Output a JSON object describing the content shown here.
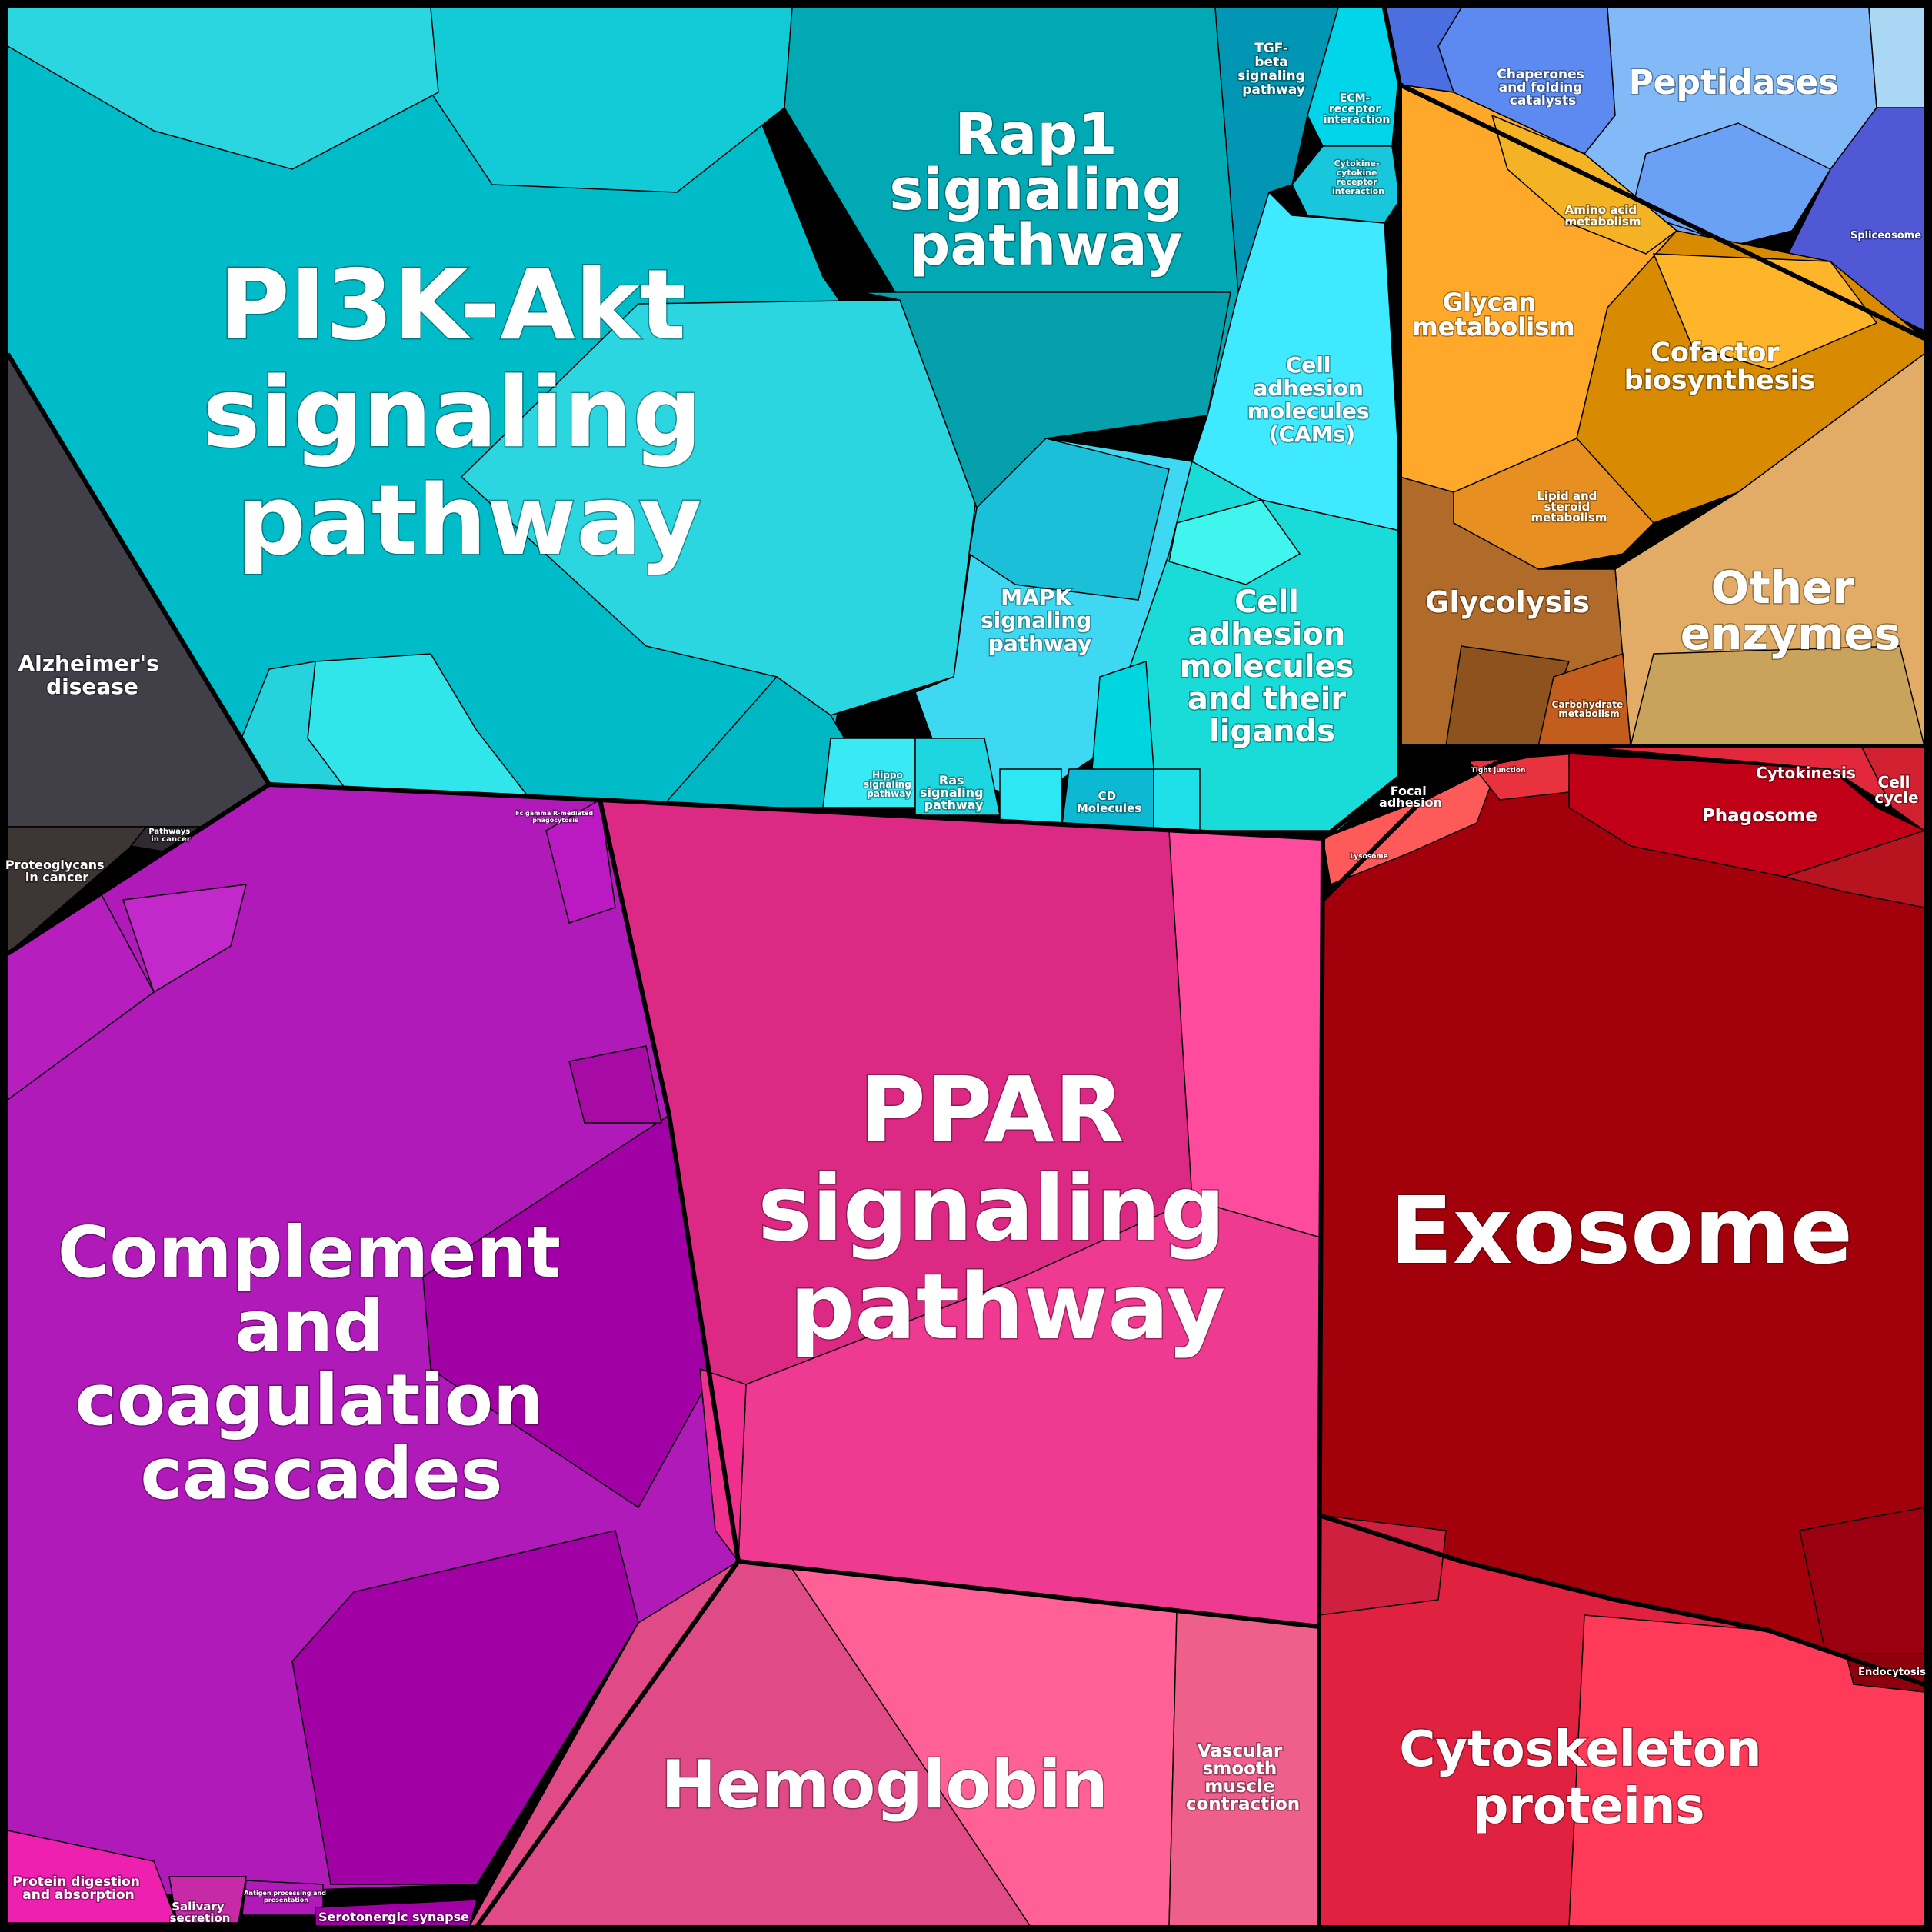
{
  "map": {
    "labels": {
      "pi3k": [
        "PI3K-Akt",
        "signaling",
        "pathway"
      ],
      "rap1": [
        "Rap1",
        "signaling",
        "pathway"
      ],
      "tgf": [
        "TGF-",
        "beta",
        "signaling",
        "pathway"
      ],
      "ecm": [
        "ECM-",
        "receptor",
        "interaction"
      ],
      "cytokine": [
        "Cytokine-",
        "cytokine",
        "receptor",
        "interaction"
      ],
      "cams": [
        "Cell",
        "adhesion",
        "molecules",
        "(CAMs)"
      ],
      "mapk": [
        "MAPK",
        "signaling",
        "pathway"
      ],
      "cam_ligands": [
        "Cell",
        "adhesion",
        "molecules",
        "and their",
        "ligands"
      ],
      "hippo": [
        "Hippo",
        "signaling",
        "pathway"
      ],
      "ras": [
        "Ras",
        "signaling",
        "pathway"
      ],
      "cd": [
        "CD",
        "Molecules"
      ],
      "alzheimer": [
        "Alzheimer's",
        "disease"
      ],
      "proteoglycans": [
        "Proteoglycans",
        "in cancer"
      ],
      "pathways_cancer": [
        "Pathways",
        "in cancer"
      ],
      "fc_gamma": [
        "Fc gamma R-mediated",
        "phagocytosis"
      ],
      "complement": [
        "Complement",
        "and",
        "coagulation",
        "cascades"
      ],
      "ppar": [
        "PPAR",
        "signaling",
        "pathway"
      ],
      "hemoglobin": [
        "Hemoglobin"
      ],
      "vascular": [
        "Vascular",
        "smooth",
        "muscle",
        "contraction"
      ],
      "protein_digestion": [
        "Protein digestion",
        "and absorption"
      ],
      "salivary": [
        "Salivary",
        "secretion"
      ],
      "antigen": [
        "Antigen processing and",
        "presentation"
      ],
      "serotonergic": [
        "Serotonergic synapse"
      ],
      "chaperones": [
        "Chaperones",
        "and folding",
        "catalysts"
      ],
      "peptidases": [
        "Peptidases"
      ],
      "spliceosome": [
        "Spliceosome"
      ],
      "amino_acid": [
        "Amino acid",
        "metabolism"
      ],
      "glycan": [
        "Glycan",
        "metabolism"
      ],
      "cofactor": [
        "Cofactor",
        "biosynthesis"
      ],
      "lipid": [
        "Lipid and",
        "steroid",
        "metabolism"
      ],
      "glycolysis": [
        "Glycolysis"
      ],
      "other_enzymes": [
        "Other",
        "enzymes"
      ],
      "carbohydrate": [
        "Carbohydrate",
        "metabolism"
      ],
      "focal": [
        "Focal",
        "adhesion"
      ],
      "tight": [
        "Tight junction"
      ],
      "cytokinesis": [
        "Cytokinesis"
      ],
      "cell_cycle": [
        "Cell",
        "cycle"
      ],
      "phagosome": [
        "Phagosome"
      ],
      "exosome": [
        "Exosome"
      ],
      "endocytosis": [
        "Endocytosis"
      ],
      "cytoskeleton": [
        "Cytoskeleton",
        "proteins"
      ],
      "lysosome": [
        "Lysosome"
      ]
    },
    "colors": {
      "cyan_group": [
        "#00bcc8",
        "#2bd6e0",
        "#00a9b3",
        "#15c9d6",
        "#37e5ea"
      ],
      "dark_group": [
        "#414049",
        "#3e3535"
      ],
      "purple_group": [
        "#b01ab8",
        "#a100a4",
        "#c228ca"
      ],
      "pink_group": [
        "#dc2a84",
        "#ff4b9e",
        "#ee3a90",
        "#e04a86",
        "#ff6096",
        "#ee5f8c"
      ],
      "blue_group": [
        "#82b9f7",
        "#5d8af0",
        "#5058d6",
        "#aad8f4"
      ],
      "orange_group": [
        "#ffa82a",
        "#d88a00",
        "#e2ac66",
        "#b06a2a"
      ],
      "red_group": [
        "#a2000b",
        "#ff5a5a",
        "#e02240",
        "#ff3a58"
      ],
      "border": "#000000"
    }
  }
}
